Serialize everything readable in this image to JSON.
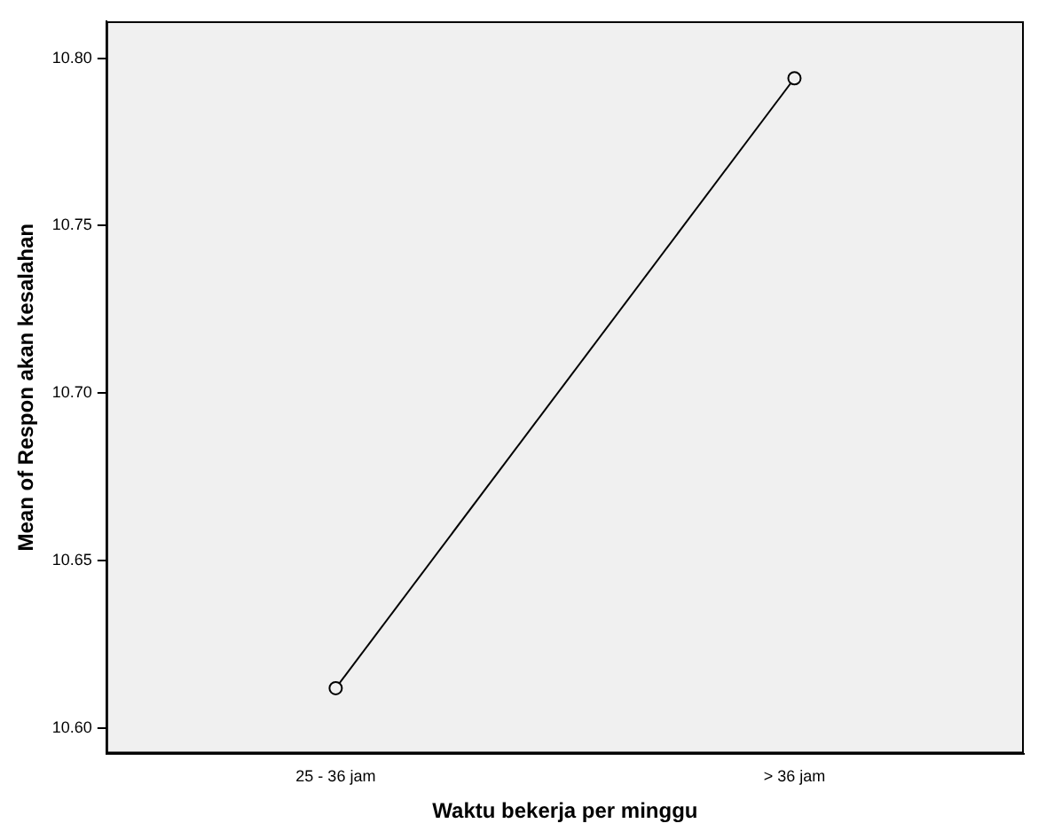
{
  "chart_data": {
    "type": "line",
    "xlabel": "Waktu bekerja per minggu",
    "ylabel": "Mean of Respon akan kesalahan",
    "categories": [
      "25 - 36 jam",
      "> 36 jam"
    ],
    "series": [
      {
        "color": "#000000",
        "values": [
          10.612,
          10.794
        ]
      }
    ],
    "ylim": [
      10.5925,
      10.811
    ],
    "yticks": [
      {
        "value": 10.6,
        "label": "10.60"
      },
      {
        "value": 10.65,
        "label": "10.65"
      },
      {
        "value": 10.7,
        "label": "10.70"
      },
      {
        "value": 10.75,
        "label": "10.75"
      },
      {
        "value": 10.8,
        "label": "10.80"
      }
    ],
    "grid": false,
    "legend": false,
    "marker": "circle",
    "line_style": "solid"
  }
}
